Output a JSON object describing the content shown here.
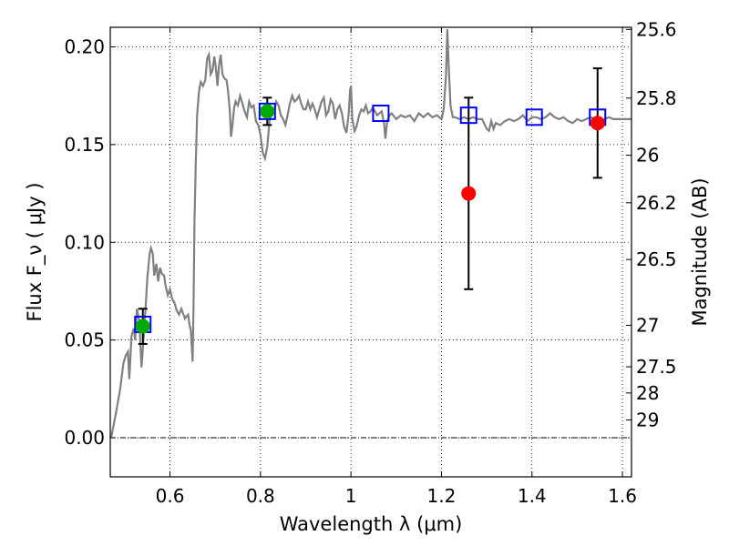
{
  "chart_data": {
    "type": "line",
    "title": "",
    "xlabel": "Wavelength  λ (μm)",
    "ylabel": "Flux  F_ν  ( μJy )",
    "ylabel_right": "Magnitude (AB)",
    "xlim": [
      0.468,
      1.62
    ],
    "ylim": [
      -0.02,
      0.21
    ],
    "grid": true,
    "x_ticks": [
      {
        "value": 0.6,
        "label": "0.6"
      },
      {
        "value": 0.8,
        "label": "0.8"
      },
      {
        "value": 1.0,
        "label": "1"
      },
      {
        "value": 1.2,
        "label": "1.2"
      },
      {
        "value": 1.4,
        "label": "1.4"
      },
      {
        "value": 1.6,
        "label": "1.6"
      }
    ],
    "y_ticks": [
      {
        "value": 0.0,
        "label": "0.00"
      },
      {
        "value": 0.05,
        "label": "0.05"
      },
      {
        "value": 0.1,
        "label": "0.10"
      },
      {
        "value": 0.15,
        "label": "0.15"
      },
      {
        "value": 0.2,
        "label": "0.20"
      }
    ],
    "mag_ticks": [
      {
        "mag": 25.6,
        "label": "25.6"
      },
      {
        "mag": 25.8,
        "label": "25.8"
      },
      {
        "mag": 26.0,
        "label": "26"
      },
      {
        "mag": 26.2,
        "label": "26.2"
      },
      {
        "mag": 26.5,
        "label": "26.5"
      },
      {
        "mag": 27.0,
        "label": "27"
      },
      {
        "mag": 27.5,
        "label": "27.5"
      },
      {
        "mag": 28.0,
        "label": "28"
      },
      {
        "mag": 29.0,
        "label": "29"
      }
    ],
    "zero_line": 0.0,
    "colors": {
      "spectrum": "#808080",
      "observed": "#ff0000",
      "observed_optical": "#00aa00",
      "model_box": "#0000ff",
      "errorbar": "#000000"
    },
    "spectrum": [
      [
        0.47,
        0.0
      ],
      [
        0.48,
        0.012
      ],
      [
        0.49,
        0.025
      ],
      [
        0.497,
        0.038
      ],
      [
        0.502,
        0.042
      ],
      [
        0.507,
        0.044
      ],
      [
        0.51,
        0.03
      ],
      [
        0.515,
        0.052
      ],
      [
        0.52,
        0.056
      ],
      [
        0.523,
        0.05
      ],
      [
        0.527,
        0.066
      ],
      [
        0.532,
        0.06
      ],
      [
        0.537,
        0.036
      ],
      [
        0.542,
        0.052
      ],
      [
        0.546,
        0.066
      ],
      [
        0.55,
        0.082
      ],
      [
        0.555,
        0.094
      ],
      [
        0.558,
        0.097
      ],
      [
        0.562,
        0.094
      ],
      [
        0.565,
        0.083
      ],
      [
        0.57,
        0.089
      ],
      [
        0.574,
        0.08
      ],
      [
        0.578,
        0.087
      ],
      [
        0.582,
        0.084
      ],
      [
        0.587,
        0.083
      ],
      [
        0.59,
        0.078
      ],
      [
        0.595,
        0.073
      ],
      [
        0.6,
        0.076
      ],
      [
        0.605,
        0.071
      ],
      [
        0.61,
        0.069
      ],
      [
        0.615,
        0.065
      ],
      [
        0.62,
        0.063
      ],
      [
        0.625,
        0.066
      ],
      [
        0.63,
        0.063
      ],
      [
        0.633,
        0.061
      ],
      [
        0.636,
        0.062
      ],
      [
        0.64,
        0.063
      ],
      [
        0.643,
        0.058
      ],
      [
        0.646,
        0.055
      ],
      [
        0.648,
        0.047
      ],
      [
        0.65,
        0.039
      ],
      [
        0.652,
        0.068
      ],
      [
        0.654,
        0.11
      ],
      [
        0.657,
        0.14
      ],
      [
        0.66,
        0.165
      ],
      [
        0.664,
        0.177
      ],
      [
        0.668,
        0.182
      ],
      [
        0.673,
        0.18
      ],
      [
        0.678,
        0.183
      ],
      [
        0.682,
        0.194
      ],
      [
        0.686,
        0.196
      ],
      [
        0.69,
        0.186
      ],
      [
        0.694,
        0.188
      ],
      [
        0.698,
        0.195
      ],
      [
        0.701,
        0.19
      ],
      [
        0.705,
        0.18
      ],
      [
        0.708,
        0.19
      ],
      [
        0.712,
        0.196
      ],
      [
        0.716,
        0.186
      ],
      [
        0.72,
        0.184
      ],
      [
        0.725,
        0.183
      ],
      [
        0.728,
        0.178
      ],
      [
        0.732,
        0.168
      ],
      [
        0.735,
        0.154
      ],
      [
        0.738,
        0.16
      ],
      [
        0.742,
        0.169
      ],
      [
        0.745,
        0.172
      ],
      [
        0.75,
        0.17
      ],
      [
        0.755,
        0.175
      ],
      [
        0.76,
        0.171
      ],
      [
        0.765,
        0.167
      ],
      [
        0.77,
        0.164
      ],
      [
        0.775,
        0.172
      ],
      [
        0.78,
        0.169
      ],
      [
        0.785,
        0.17
      ],
      [
        0.79,
        0.162
      ],
      [
        0.795,
        0.16
      ],
      [
        0.8,
        0.155
      ],
      [
        0.805,
        0.146
      ],
      [
        0.81,
        0.143
      ],
      [
        0.815,
        0.149
      ],
      [
        0.82,
        0.162
      ],
      [
        0.825,
        0.168
      ],
      [
        0.83,
        0.167
      ],
      [
        0.835,
        0.172
      ],
      [
        0.84,
        0.17
      ],
      [
        0.845,
        0.165
      ],
      [
        0.85,
        0.163
      ],
      [
        0.855,
        0.16
      ],
      [
        0.86,
        0.165
      ],
      [
        0.865,
        0.171
      ],
      [
        0.87,
        0.175
      ],
      [
        0.875,
        0.172
      ],
      [
        0.88,
        0.173
      ],
      [
        0.885,
        0.175
      ],
      [
        0.89,
        0.171
      ],
      [
        0.895,
        0.168
      ],
      [
        0.9,
        0.168
      ],
      [
        0.905,
        0.172
      ],
      [
        0.91,
        0.168
      ],
      [
        0.915,
        0.171
      ],
      [
        0.92,
        0.168
      ],
      [
        0.925,
        0.164
      ],
      [
        0.93,
        0.168
      ],
      [
        0.935,
        0.172
      ],
      [
        0.94,
        0.174
      ],
      [
        0.945,
        0.165
      ],
      [
        0.95,
        0.167
      ],
      [
        0.955,
        0.173
      ],
      [
        0.96,
        0.171
      ],
      [
        0.965,
        0.163
      ],
      [
        0.97,
        0.168
      ],
      [
        0.975,
        0.17
      ],
      [
        0.98,
        0.166
      ],
      [
        0.985,
        0.159
      ],
      [
        0.99,
        0.156
      ],
      [
        0.995,
        0.166
      ],
      [
        0.998,
        0.178
      ],
      [
        1.0,
        0.18
      ],
      [
        1.003,
        0.163
      ],
      [
        1.008,
        0.157
      ],
      [
        1.012,
        0.159
      ],
      [
        1.018,
        0.165
      ],
      [
        1.023,
        0.168
      ],
      [
        1.028,
        0.167
      ],
      [
        1.033,
        0.17
      ],
      [
        1.038,
        0.166
      ],
      [
        1.043,
        0.167
      ],
      [
        1.048,
        0.169
      ],
      [
        1.053,
        0.167
      ],
      [
        1.058,
        0.165
      ],
      [
        1.063,
        0.166
      ],
      [
        1.068,
        0.167
      ],
      [
        1.073,
        0.161
      ],
      [
        1.076,
        0.153
      ],
      [
        1.08,
        0.162
      ],
      [
        1.085,
        0.165
      ],
      [
        1.09,
        0.166
      ],
      [
        1.1,
        0.163
      ],
      [
        1.11,
        0.165
      ],
      [
        1.12,
        0.164
      ],
      [
        1.13,
        0.165
      ],
      [
        1.14,
        0.162
      ],
      [
        1.15,
        0.166
      ],
      [
        1.16,
        0.164
      ],
      [
        1.17,
        0.166
      ],
      [
        1.18,
        0.164
      ],
      [
        1.19,
        0.165
      ],
      [
        1.2,
        0.163
      ],
      [
        1.205,
        0.168
      ],
      [
        1.21,
        0.185
      ],
      [
        1.213,
        0.209
      ],
      [
        1.216,
        0.19
      ],
      [
        1.22,
        0.17
      ],
      [
        1.225,
        0.164
      ],
      [
        1.23,
        0.164
      ],
      [
        1.24,
        0.163
      ],
      [
        1.25,
        0.164
      ],
      [
        1.26,
        0.163
      ],
      [
        1.27,
        0.164
      ],
      [
        1.28,
        0.163
      ],
      [
        1.29,
        0.163
      ],
      [
        1.3,
        0.158
      ],
      [
        1.305,
        0.157
      ],
      [
        1.31,
        0.162
      ],
      [
        1.315,
        0.158
      ],
      [
        1.32,
        0.161
      ],
      [
        1.33,
        0.16
      ],
      [
        1.34,
        0.162
      ],
      [
        1.35,
        0.163
      ],
      [
        1.36,
        0.162
      ],
      [
        1.37,
        0.163
      ],
      [
        1.38,
        0.165
      ],
      [
        1.39,
        0.162
      ],
      [
        1.4,
        0.164
      ],
      [
        1.41,
        0.164
      ],
      [
        1.42,
        0.163
      ],
      [
        1.43,
        0.164
      ],
      [
        1.44,
        0.166
      ],
      [
        1.45,
        0.164
      ],
      [
        1.46,
        0.163
      ],
      [
        1.47,
        0.164
      ],
      [
        1.48,
        0.162
      ],
      [
        1.49,
        0.161
      ],
      [
        1.5,
        0.163
      ],
      [
        1.51,
        0.162
      ],
      [
        1.52,
        0.163
      ],
      [
        1.53,
        0.164
      ],
      [
        1.54,
        0.163
      ],
      [
        1.55,
        0.162
      ],
      [
        1.56,
        0.163
      ],
      [
        1.57,
        0.164
      ],
      [
        1.58,
        0.163
      ],
      [
        1.59,
        0.163
      ],
      [
        1.6,
        0.163
      ],
      [
        1.61,
        0.163
      ],
      [
        1.62,
        0.163
      ]
    ],
    "observed_points": [
      {
        "x": 0.54,
        "y": 0.057,
        "err": 0.009,
        "color": "green"
      },
      {
        "x": 0.815,
        "y": 0.167,
        "err": 0.007,
        "color": "green"
      },
      {
        "x": 1.26,
        "y": 0.125,
        "err": 0.049,
        "color": "red"
      },
      {
        "x": 1.545,
        "y": 0.161,
        "err": 0.028,
        "color": "red"
      }
    ],
    "model_boxes": [
      {
        "x": 0.54,
        "y": 0.058
      },
      {
        "x": 0.815,
        "y": 0.167
      },
      {
        "x": 1.066,
        "y": 0.166
      },
      {
        "x": 1.26,
        "y": 0.165
      },
      {
        "x": 1.405,
        "y": 0.164
      },
      {
        "x": 1.545,
        "y": 0.164
      }
    ]
  }
}
